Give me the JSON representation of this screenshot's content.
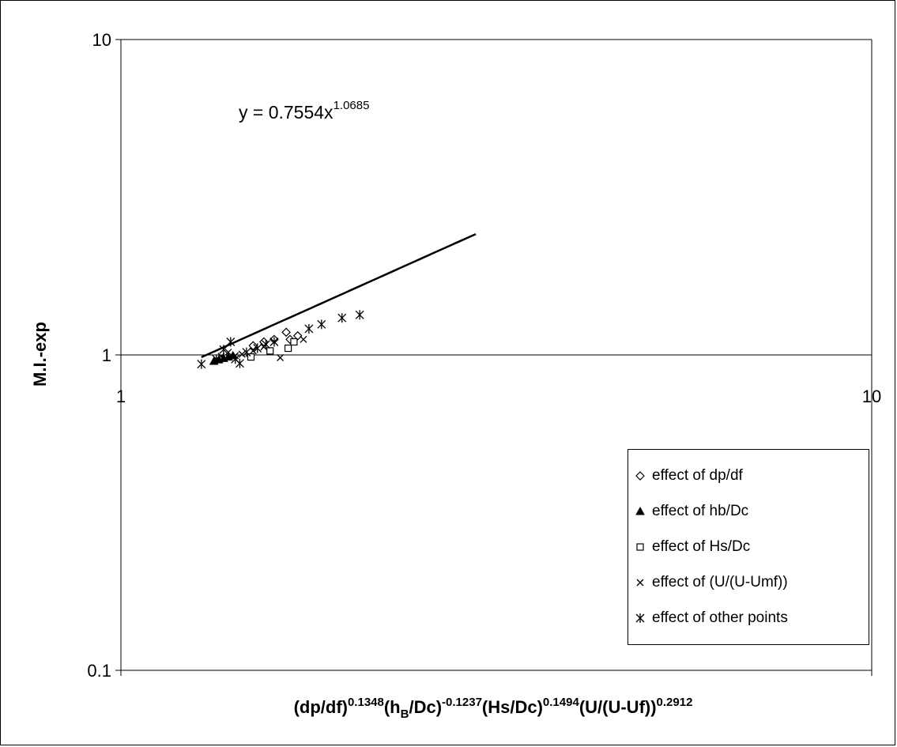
{
  "chart_data": {
    "type": "scatter",
    "x_scale": "log",
    "y_scale": "log",
    "xlim": [
      1,
      10
    ],
    "ylim": [
      0.1,
      10
    ],
    "x_ticks": [
      "1",
      "10"
    ],
    "y_ticks": [
      "0.1",
      "1",
      "10"
    ],
    "grid": {
      "horizontal_major": true,
      "vertical": false
    },
    "legend_placement": "bottom-right",
    "ylabel": "M.I.-exp",
    "xlabel_parts": [
      {
        "text": "(dp/df)",
        "style": "normal"
      },
      {
        "text": "0.1348",
        "style": "sup"
      },
      {
        "text": "(h",
        "style": "normal"
      },
      {
        "text": "B",
        "style": "sub"
      },
      {
        "text": "/Dc)",
        "style": "normal"
      },
      {
        "text": "-0.1237",
        "style": "sup"
      },
      {
        "text": "(Hs/Dc)",
        "style": "normal"
      },
      {
        "text": "0.1494",
        "style": "sup"
      },
      {
        "text": "(U/(U-Uf))",
        "style": "normal"
      },
      {
        "text": "0.2912",
        "style": "sup"
      }
    ],
    "trendline": {
      "equation_base": "y = 0.7554x",
      "equation_exponent": "1.0685",
      "coefficient": 0.7554,
      "exponent": 1.0685,
      "x_range": [
        1.28,
        2.97
      ]
    },
    "series": [
      {
        "name": "effect of dp/df",
        "marker": "diamond-open",
        "points": [
          [
            1.5,
            1.07
          ],
          [
            1.55,
            1.1
          ],
          [
            1.6,
            1.12
          ],
          [
            1.66,
            1.18
          ],
          [
            1.72,
            1.15
          ],
          [
            1.68,
            1.12
          ]
        ]
      },
      {
        "name": "effect of hb/Dc",
        "marker": "triangle-filled",
        "points": [
          [
            1.33,
            0.955
          ],
          [
            1.35,
            0.965
          ],
          [
            1.37,
            0.975
          ],
          [
            1.39,
            0.985
          ],
          [
            1.41,
            0.995
          ]
        ]
      },
      {
        "name": "effect of Hs/Dc",
        "marker": "square-open",
        "points": [
          [
            1.49,
            0.985
          ],
          [
            1.58,
            1.03
          ],
          [
            1.67,
            1.05
          ],
          [
            1.7,
            1.1
          ]
        ]
      },
      {
        "name": "effect of (U/(U-Umf))",
        "marker": "x",
        "points": [
          [
            1.36,
            0.99
          ],
          [
            1.39,
            1.02
          ],
          [
            1.42,
            0.995
          ],
          [
            1.45,
            1.005
          ],
          [
            1.5,
            1.03
          ],
          [
            1.55,
            1.06
          ],
          [
            1.63,
            0.98
          ],
          [
            1.75,
            1.12
          ]
        ]
      },
      {
        "name": "effect of other points",
        "marker": "asterisk",
        "points": [
          [
            1.28,
            0.935
          ],
          [
            1.34,
            0.97
          ],
          [
            1.37,
            1.04
          ],
          [
            1.4,
            1.1
          ],
          [
            1.42,
            0.97
          ],
          [
            1.44,
            0.94
          ],
          [
            1.47,
            1.02
          ],
          [
            1.52,
            1.05
          ],
          [
            1.56,
            1.08
          ],
          [
            1.6,
            1.1
          ],
          [
            1.78,
            1.21
          ],
          [
            1.85,
            1.25
          ],
          [
            1.97,
            1.31
          ],
          [
            2.08,
            1.34
          ]
        ]
      }
    ]
  }
}
